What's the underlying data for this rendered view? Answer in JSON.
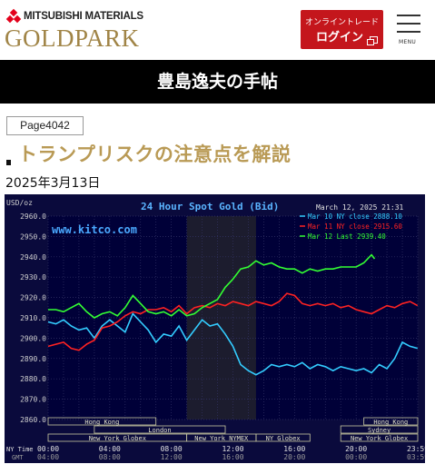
{
  "header": {
    "brand_top": "MITSUBISHI MATERIALS",
    "brand_main": "GOLDPARK",
    "login_sub": "オンライントレード",
    "login_main": "ログイン",
    "menu_label": "MENU"
  },
  "band": {
    "title": "豊島逸夫の手帖"
  },
  "article": {
    "page_tag": "Page4042",
    "title": "トランプリスクの注意点を解説",
    "date": "2025年3月13日"
  },
  "colors": {
    "brand_gold": "#a08446",
    "title_gold": "#b99a55",
    "login_red": "#c4161c",
    "chart_bg": "#000040"
  },
  "chart_data": {
    "type": "line",
    "title": "24 Hour Spot Gold (Bid)",
    "timestamp": "March 12, 2025 21:31",
    "watermark": "www.kitco.com",
    "unit": "USD/oz",
    "ylim": [
      2860.0,
      2960.0
    ],
    "y_ticks": [
      "2960.0",
      "2950.0",
      "2940.0",
      "2930.0",
      "2920.0",
      "2910.0",
      "2900.0",
      "2890.0",
      "2880.0",
      "2870.0",
      "2860.0"
    ],
    "x_ticks": [
      "00:00",
      "04:00",
      "08:00",
      "12:00",
      "16:00",
      "20:00",
      "23:59"
    ],
    "x_ticks_gmt": [
      "04:00",
      "08:00",
      "12:00",
      "16:00",
      "20:00",
      "00:00",
      "03:59"
    ],
    "x_label_ny": "NY Time",
    "x_label_gmt": "GMT",
    "legend": [
      {
        "label": "Mar 10 NY close 2888.10",
        "color": "#33ccff"
      },
      {
        "label": "Mar 11 NY close 2915.60",
        "color": "#ff2222"
      },
      {
        "label": "Mar 12 Last 2939.40",
        "color": "#33ff33"
      }
    ],
    "sessions": [
      {
        "label": "Hong Kong",
        "start": 0.0,
        "end": 7.0,
        "row": 0
      },
      {
        "label": "Hong Kong",
        "start": 20.5,
        "end": 24.0,
        "row": 0
      },
      {
        "label": "London",
        "start": 3.0,
        "end": 11.5,
        "row": 1
      },
      {
        "label": "Sydney",
        "start": 19.0,
        "end": 24.0,
        "row": 1
      },
      {
        "label": "New York Globex",
        "start": 0.0,
        "end": 9.0,
        "row": 2
      },
      {
        "label": "New York NYMEX",
        "start": 9.0,
        "end": 13.5,
        "row": 2
      },
      {
        "label": "NY Globex",
        "start": 13.5,
        "end": 17.0,
        "row": 2
      },
      {
        "label": "New York Globex",
        "start": 19.0,
        "end": 24.0,
        "row": 2
      }
    ],
    "series": [
      {
        "name": "Mar 10 NY close 2888.10",
        "color": "#33ccff",
        "x": [
          0.0,
          0.5,
          1.0,
          1.5,
          2.0,
          2.5,
          3.0,
          3.5,
          4.0,
          4.5,
          5.0,
          5.5,
          6.0,
          6.5,
          7.0,
          7.5,
          8.0,
          8.5,
          9.0,
          9.5,
          10.0,
          10.5,
          11.0,
          11.5,
          12.0,
          12.5,
          13.0,
          13.5,
          14.0,
          14.5,
          15.0,
          15.5,
          16.0,
          16.5,
          17.0,
          17.5,
          18.0,
          18.5,
          19.0,
          19.5,
          20.0,
          20.5,
          21.0,
          21.5,
          22.0,
          22.5,
          23.0,
          23.5,
          23.99
        ],
        "values": [
          2908,
          2907,
          2909,
          2906,
          2904,
          2905,
          2900,
          2906,
          2909,
          2906,
          2903,
          2912,
          2908,
          2904,
          2898,
          2902,
          2901,
          2906,
          2899,
          2904,
          2909,
          2906,
          2907,
          2902,
          2896,
          2887,
          2884,
          2882,
          2884,
          2887,
          2886,
          2887,
          2886,
          2888,
          2885,
          2887,
          2886,
          2884,
          2886,
          2885,
          2884,
          2885,
          2883,
          2887,
          2885,
          2890,
          2898,
          2896,
          2895
        ]
      },
      {
        "name": "Mar 11 NY close 2915.60",
        "color": "#ff2222",
        "x": [
          0.0,
          0.5,
          1.0,
          1.5,
          2.0,
          2.5,
          3.0,
          3.5,
          4.0,
          4.5,
          5.0,
          5.5,
          6.0,
          6.5,
          7.0,
          7.5,
          8.0,
          8.5,
          9.0,
          9.5,
          10.0,
          10.5,
          11.0,
          11.5,
          12.0,
          12.5,
          13.0,
          13.5,
          14.0,
          14.5,
          15.0,
          15.5,
          16.0,
          16.5,
          17.0,
          17.5,
          18.0,
          18.5,
          19.0,
          19.5,
          20.0,
          20.5,
          21.0,
          21.5,
          22.0,
          22.5,
          23.0,
          23.5,
          23.99
        ],
        "values": [
          2896,
          2897,
          2898,
          2895,
          2894,
          2897,
          2899,
          2905,
          2906,
          2908,
          2911,
          2913,
          2912,
          2914,
          2914,
          2915,
          2913,
          2916,
          2912,
          2915,
          2916,
          2915,
          2917,
          2916,
          2918,
          2917,
          2916,
          2918,
          2917,
          2916,
          2918,
          2922,
          2921,
          2917,
          2916,
          2917,
          2916,
          2917,
          2915,
          2916,
          2914,
          2913,
          2912,
          2914,
          2916,
          2915,
          2917,
          2918,
          2916
        ]
      },
      {
        "name": "Mar 12 Last 2939.40",
        "color": "#33ff33",
        "x": [
          0.0,
          0.5,
          1.0,
          1.5,
          2.0,
          2.5,
          3.0,
          3.5,
          4.0,
          4.5,
          5.0,
          5.5,
          6.0,
          6.5,
          7.0,
          7.5,
          8.0,
          8.5,
          9.0,
          9.5,
          10.0,
          10.5,
          11.0,
          11.5,
          12.0,
          12.5,
          13.0,
          13.5,
          14.0,
          14.5,
          15.0,
          15.5,
          16.0,
          16.5,
          17.0,
          17.5,
          18.0,
          18.5,
          19.0,
          19.5,
          20.0,
          20.5,
          21.0,
          21.2
        ],
        "values": [
          2914,
          2914,
          2913,
          2915,
          2917,
          2913,
          2910,
          2912,
          2913,
          2911,
          2915,
          2921,
          2917,
          2913,
          2912,
          2913,
          2911,
          2914,
          2911,
          2912,
          2915,
          2917,
          2919,
          2925,
          2929,
          2934,
          2935,
          2938,
          2936,
          2937,
          2935,
          2934,
          2934,
          2932,
          2934,
          2933,
          2934,
          2934,
          2935,
          2935,
          2935,
          2937,
          2941,
          2939
        ]
      }
    ]
  }
}
